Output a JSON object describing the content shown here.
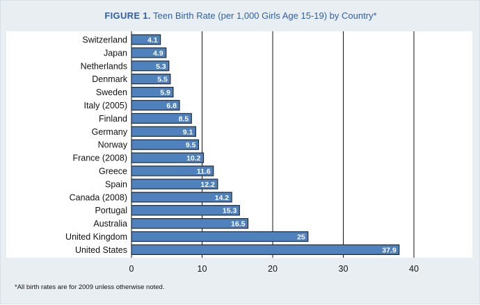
{
  "figure_label": "FIGURE 1.",
  "figure_title": "Teen Birth Rate (per 1,000 Girls Age 15-19) by Country*",
  "footnote": "*All birth rates are for 2009 unless otherwise noted.",
  "colors": {
    "bar_fill": "#4f81bd",
    "bar_stroke": "#1f2a36",
    "panel_bg": "#e9eef3",
    "plot_bg": "#ffffff",
    "title": "#2f5f9e"
  },
  "chart_data": {
    "type": "bar",
    "orientation": "horizontal",
    "title": "Teen Birth Rate (per 1,000 Girls Age 15-19) by Country*",
    "categories": [
      "Switzerland",
      "Japan",
      "Netherlands",
      "Denmark",
      "Sweden",
      "Italy (2005)",
      "Finland",
      "Germany",
      "Norway",
      "France (2008)",
      "Greece",
      "Spain",
      "Canada (2008)",
      "Portugal",
      "Australia",
      "United Kingdom",
      "United States"
    ],
    "values": [
      4.1,
      4.9,
      5.3,
      5.5,
      5.9,
      6.8,
      8.5,
      9.1,
      9.5,
      10.2,
      11.6,
      12.2,
      14.2,
      15.3,
      16.5,
      25,
      37.9
    ],
    "value_labels": [
      "4.1",
      "4.9",
      "5.3",
      "5.5",
      "5.9",
      "6.8",
      "8.5",
      "9.1",
      "9.5",
      "10.2",
      "11.6",
      "12.2",
      "14.2",
      "15.3",
      "16.5",
      "25",
      "37.9"
    ],
    "xticks": [
      0,
      10,
      20,
      30,
      40
    ],
    "xtick_labels": [
      "0",
      "10",
      "20",
      "30",
      "40"
    ],
    "xlim": [
      0,
      40
    ],
    "xlabel": "",
    "ylabel": "",
    "grid": "vertical lines at major ticks",
    "legend": "none"
  }
}
